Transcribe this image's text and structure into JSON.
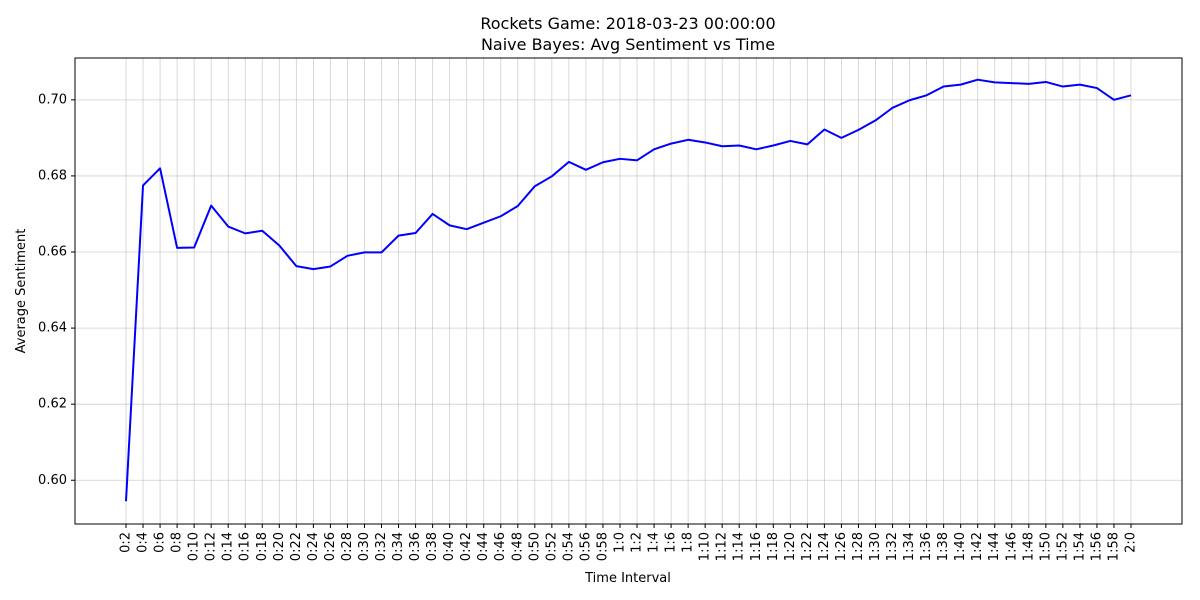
{
  "chart_data": {
    "type": "line",
    "title": "Rockets Game: 2018-03-23 00:00:00",
    "subtitle": "Naive Bayes: Avg Sentiment vs Time",
    "xlabel": "Time Interval",
    "ylabel": "Average Sentiment",
    "ylim": [
      0.5885,
      0.711
    ],
    "yticks": [
      "0.60",
      "0.62",
      "0.64",
      "0.66",
      "0.68",
      "0.70"
    ],
    "grid": true,
    "line_color": "#0000ff",
    "categories": [
      "0:2",
      "0:4",
      "0:6",
      "0:8",
      "0:10",
      "0:12",
      "0:14",
      "0:16",
      "0:18",
      "0:20",
      "0:22",
      "0:24",
      "0:26",
      "0:28",
      "0:30",
      "0:32",
      "0:34",
      "0:36",
      "0:38",
      "0:40",
      "0:42",
      "0:44",
      "0:46",
      "0:48",
      "0:50",
      "0:52",
      "0:54",
      "0:56",
      "0:58",
      "1:0",
      "1:2",
      "1:4",
      "1:6",
      "1:8",
      "1:10",
      "1:12",
      "1:14",
      "1:16",
      "1:18",
      "1:20",
      "1:22",
      "1:24",
      "1:26",
      "1:28",
      "1:30",
      "1:32",
      "1:34",
      "1:36",
      "1:38",
      "1:40",
      "1:42",
      "1:44",
      "1:46",
      "1:48",
      "1:50",
      "1:52",
      "1:54",
      "1:56",
      "1:58",
      "2:0"
    ],
    "values": [
      0.5945,
      0.6775,
      0.682,
      0.6611,
      0.6612,
      0.6722,
      0.6667,
      0.6649,
      0.6656,
      0.6617,
      0.6563,
      0.6555,
      0.6562,
      0.659,
      0.6599,
      0.6599,
      0.6643,
      0.665,
      0.67,
      0.667,
      0.666,
      0.6677,
      0.6694,
      0.6721,
      0.6773,
      0.6799,
      0.6837,
      0.6816,
      0.6836,
      0.6845,
      0.6841,
      0.687,
      0.6885,
      0.6895,
      0.6888,
      0.6878,
      0.688,
      0.687,
      0.688,
      0.6892,
      0.6883,
      0.6922,
      0.69,
      0.6921,
      0.6946,
      0.6979,
      0.6999,
      0.7012,
      0.7035,
      0.704,
      0.7053,
      0.7046,
      0.7044,
      0.7042,
      0.7047,
      0.7035,
      0.704,
      0.7031,
      0.7,
      0.7012
    ]
  }
}
